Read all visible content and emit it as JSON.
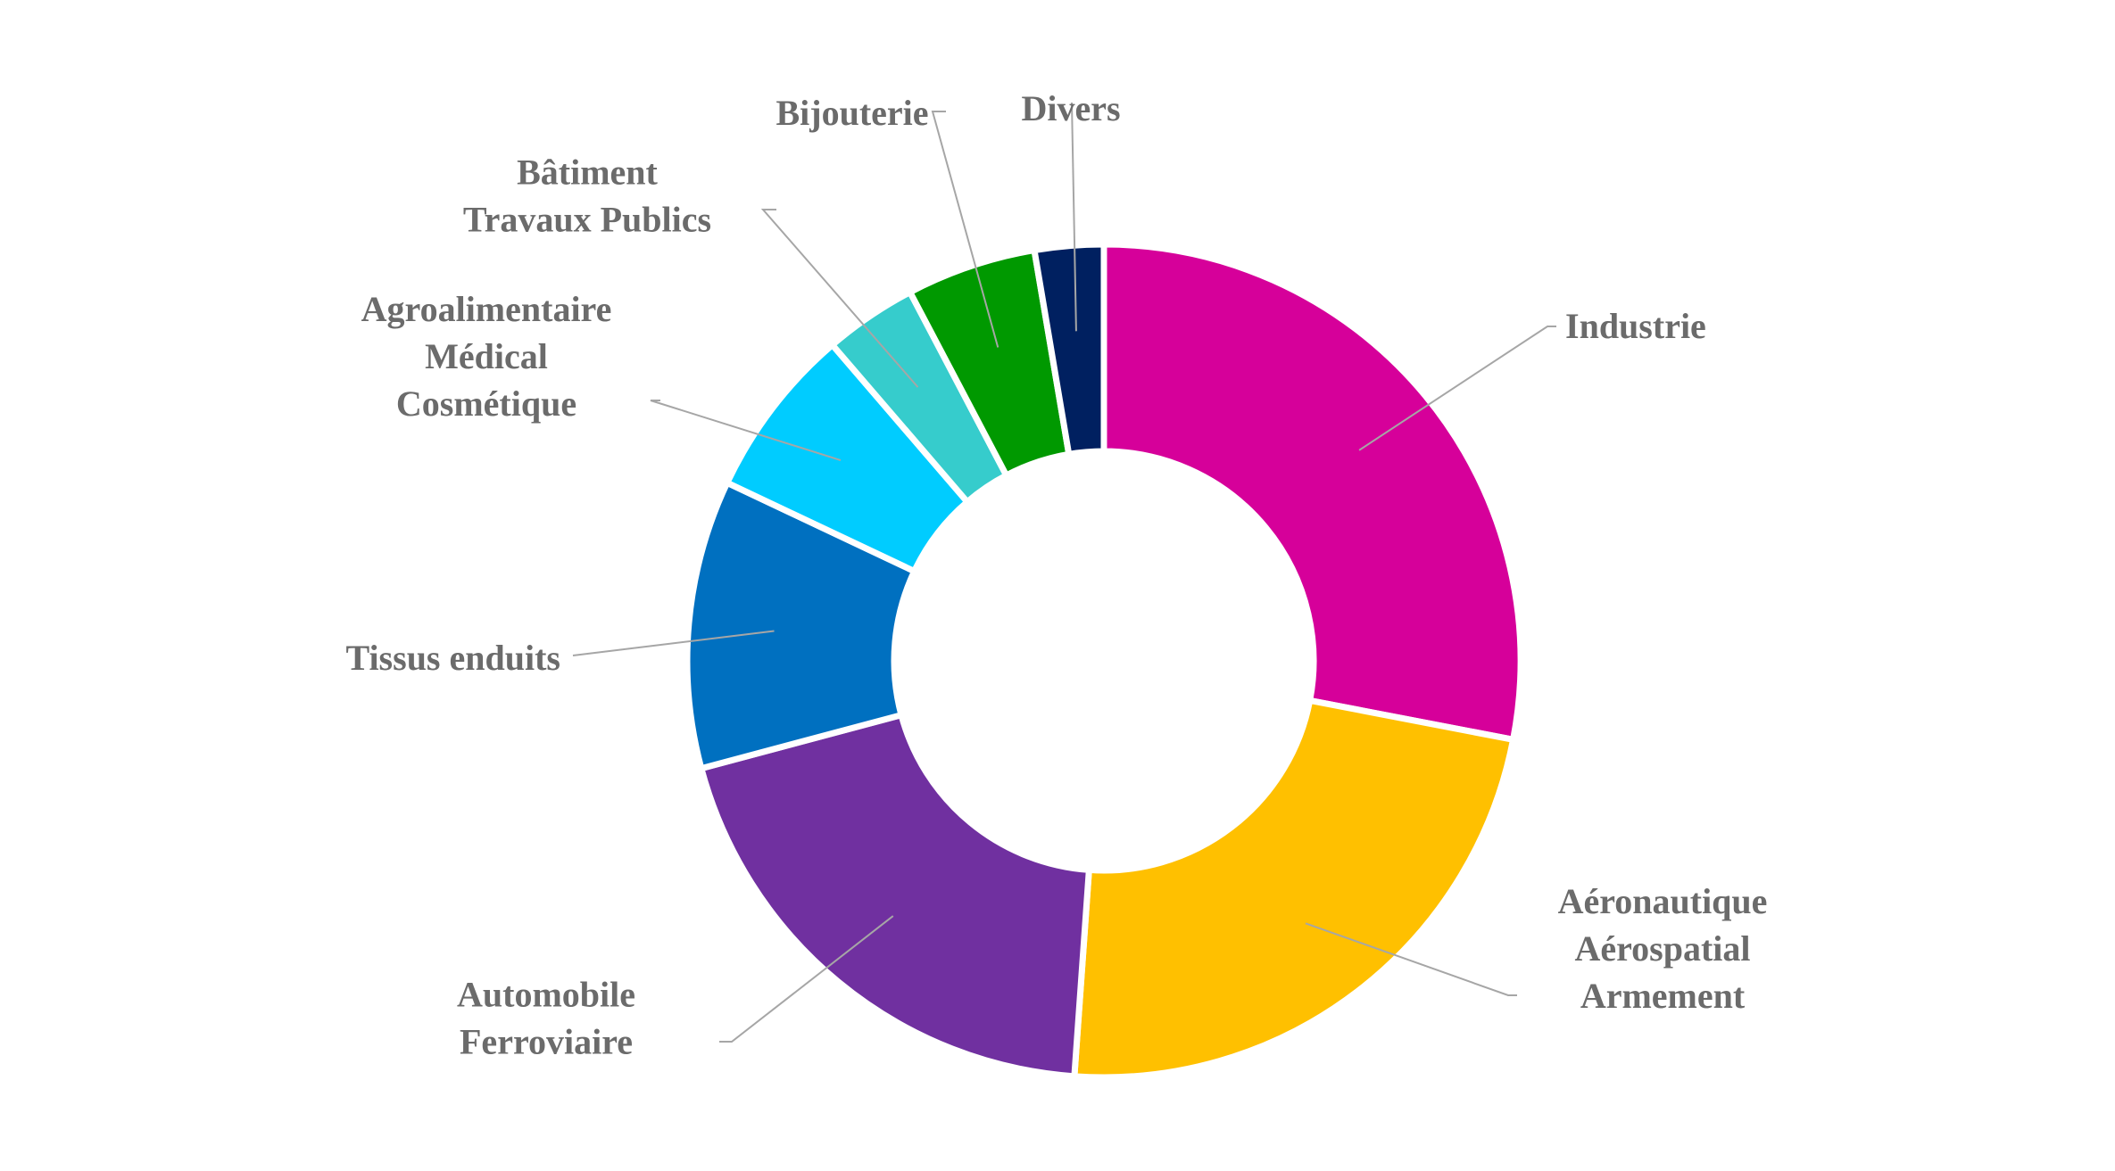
{
  "chart_data": {
    "type": "pie",
    "variant": "donut",
    "start_angle_deg": 0,
    "direction": "clockwise",
    "slices": [
      {
        "label_lines": [
          "Industrie"
        ],
        "value": 27.3,
        "color": "#D6009A"
      },
      {
        "label_lines": [
          "Aéronautique",
          "Aérospatial",
          "Armement"
        ],
        "value": 22.5,
        "color": "#FFC000"
      },
      {
        "label_lines": [
          "Automobile",
          "Ferroviaire"
        ],
        "value": 19.2,
        "color": "#7030A0"
      },
      {
        "label_lines": [
          "Tissus enduits"
        ],
        "value": 10.9,
        "color": "#0070C0"
      },
      {
        "label_lines": [
          "Agroalimentaire",
          "Médical",
          "Cosmétique"
        ],
        "value": 6.5,
        "color": "#00CCFF"
      },
      {
        "label_lines": [
          "Bâtiment",
          "Travaux Publics"
        ],
        "value": 3.5,
        "color": "#36CCCC"
      },
      {
        "label_lines": [
          "Bijouterie"
        ],
        "value": 4.9,
        "color": "#009900"
      },
      {
        "label_lines": [
          "Divers"
        ],
        "value": 2.6,
        "color": "#002060"
      }
    ]
  }
}
